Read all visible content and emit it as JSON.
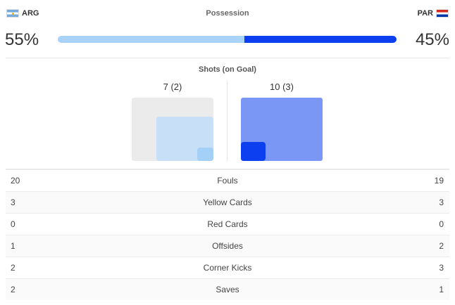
{
  "home": {
    "code": "ARG",
    "possession": "55%",
    "possession_value": 55,
    "shots": "7 (2)"
  },
  "away": {
    "code": "PAR",
    "possession": "45%",
    "possession_value": 45,
    "shots": "10 (3)"
  },
  "possession_title": "Possession",
  "shots_title": "Shots (on Goal)",
  "colors": {
    "home": "#a9d2f8",
    "away": "#0b3ff0"
  },
  "stats": [
    {
      "label": "Fouls",
      "home": "20",
      "away": "19"
    },
    {
      "label": "Yellow Cards",
      "home": "3",
      "away": "3"
    },
    {
      "label": "Red Cards",
      "home": "0",
      "away": "0"
    },
    {
      "label": "Offsides",
      "home": "1",
      "away": "2"
    },
    {
      "label": "Corner Kicks",
      "home": "2",
      "away": "3"
    },
    {
      "label": "Saves",
      "home": "2",
      "away": "1"
    }
  ]
}
